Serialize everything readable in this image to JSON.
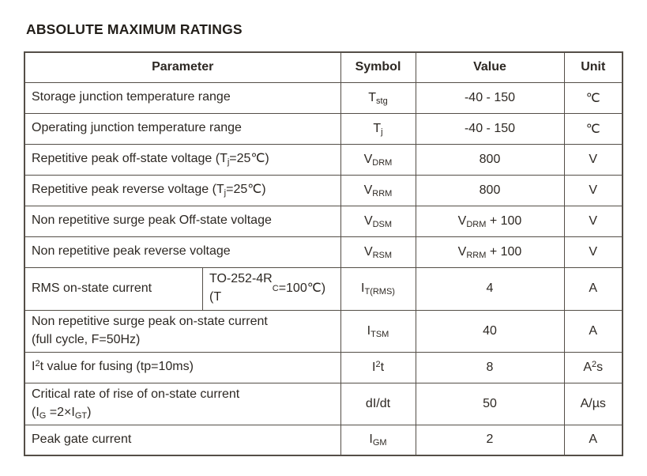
{
  "page": {
    "title": "ABSOLUTE MAXIMUM RATINGS"
  },
  "colors": {
    "text": "#2d2823",
    "border": "#544e47",
    "background": "#ffffff"
  },
  "table": {
    "headers": {
      "parameter": "Parameter",
      "symbol": "Symbol",
      "value": "Value",
      "unit": "Unit"
    },
    "rows": [
      {
        "parameter": "Storage junction temperature range",
        "symbol": "T~stg~",
        "value": "-40 - 150",
        "unit": "℃"
      },
      {
        "parameter": "Operating junction temperature range",
        "symbol": "T~j~",
        "value": "-40 - 150",
        "unit": "℃"
      },
      {
        "parameter": "Repetitive peak off-state voltage (T~j~=25℃)",
        "symbol": "V~DRM~",
        "value": "800",
        "unit": "V"
      },
      {
        "parameter": "Repetitive peak reverse voltage (T~j~=25℃)",
        "symbol": "V~RRM~",
        "value": "800",
        "unit": "V"
      },
      {
        "parameter": "Non repetitive surge peak Off-state voltage",
        "symbol": "V~DSM~",
        "value": "V~DRM~ + 100",
        "unit": "V"
      },
      {
        "parameter": "Non repetitive peak reverse voltage",
        "symbol": "V~RSM~",
        "value": "V~RRM~ + 100",
        "unit": "V"
      },
      {
        "parameter": "RMS on-state current",
        "condition": "TO-252-4R\n(T~C~=100℃)",
        "symbol": "I~T(RMS)~",
        "value": "4",
        "unit": "A"
      },
      {
        "parameter": "Non repetitive surge peak on-state current\n(full cycle, F=50Hz)",
        "symbol": "I~TSM~",
        "value": "40",
        "unit": "A"
      },
      {
        "parameter": "I^2^t value for fusing (tp=10ms)",
        "symbol": "I^2^t",
        "value": "8",
        "unit": "A^2^s"
      },
      {
        "parameter": "Critical rate of rise of on-state current\n(I~G~ =2×I~GT~)",
        "symbol": "dI/dt",
        "value": "50",
        "unit": "A/µs"
      },
      {
        "parameter": "Peak gate current",
        "symbol": "I~GM~",
        "value": "2",
        "unit": "A"
      }
    ]
  }
}
